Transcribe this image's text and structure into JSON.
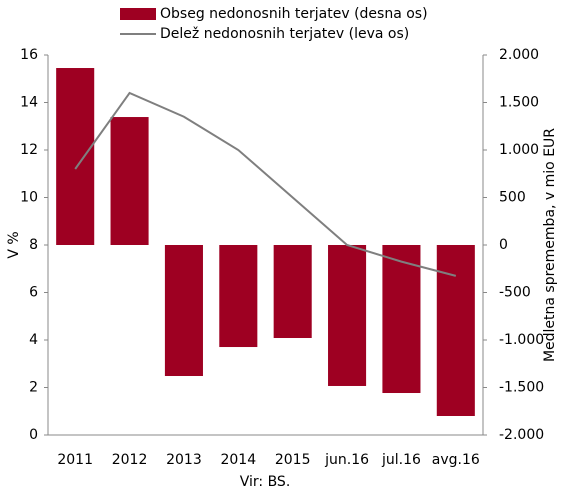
{
  "chart_data": {
    "type": "combo",
    "categories": [
      "2011",
      "2012",
      "2013",
      "2014",
      "2015",
      "jun.16",
      "jul.16",
      "avg.16"
    ],
    "series": [
      {
        "name": "Obseg nedonosnih terjatev (desna os)",
        "type": "bar",
        "axis": "y2",
        "color": "#9e0022",
        "values": [
          1863,
          1347,
          -1379,
          -1074,
          -979,
          -1484,
          -1558,
          -1800
        ]
      },
      {
        "name": "Delež nedonosnih terjatev (leva os)",
        "type": "line",
        "axis": "y",
        "color": "#7f7f7f",
        "values": [
          11.2,
          14.4,
          13.4,
          12.0,
          10.0,
          8.0,
          7.3,
          6.7
        ]
      }
    ],
    "ylabel": "V %",
    "y2label": "Medletna sprememba, v mio EUR",
    "ylim": [
      0,
      16
    ],
    "yticks": [
      0,
      2,
      4,
      6,
      8,
      10,
      12,
      14,
      16
    ],
    "y2lim": [
      -2000,
      2000
    ],
    "y2ticks": [
      {
        "value": -2000,
        "label": "-2.000"
      },
      {
        "value": -1500,
        "label": "-1.500"
      },
      {
        "value": -1000,
        "label": "-1.000"
      },
      -500,
      0,
      500,
      {
        "value": 1000,
        "label": "1.000"
      },
      {
        "value": 1500,
        "label": "1.500"
      },
      {
        "value": 2000,
        "label": "2.000"
      }
    ],
    "grid": false,
    "legend": "top",
    "source": "Vir: BS."
  }
}
